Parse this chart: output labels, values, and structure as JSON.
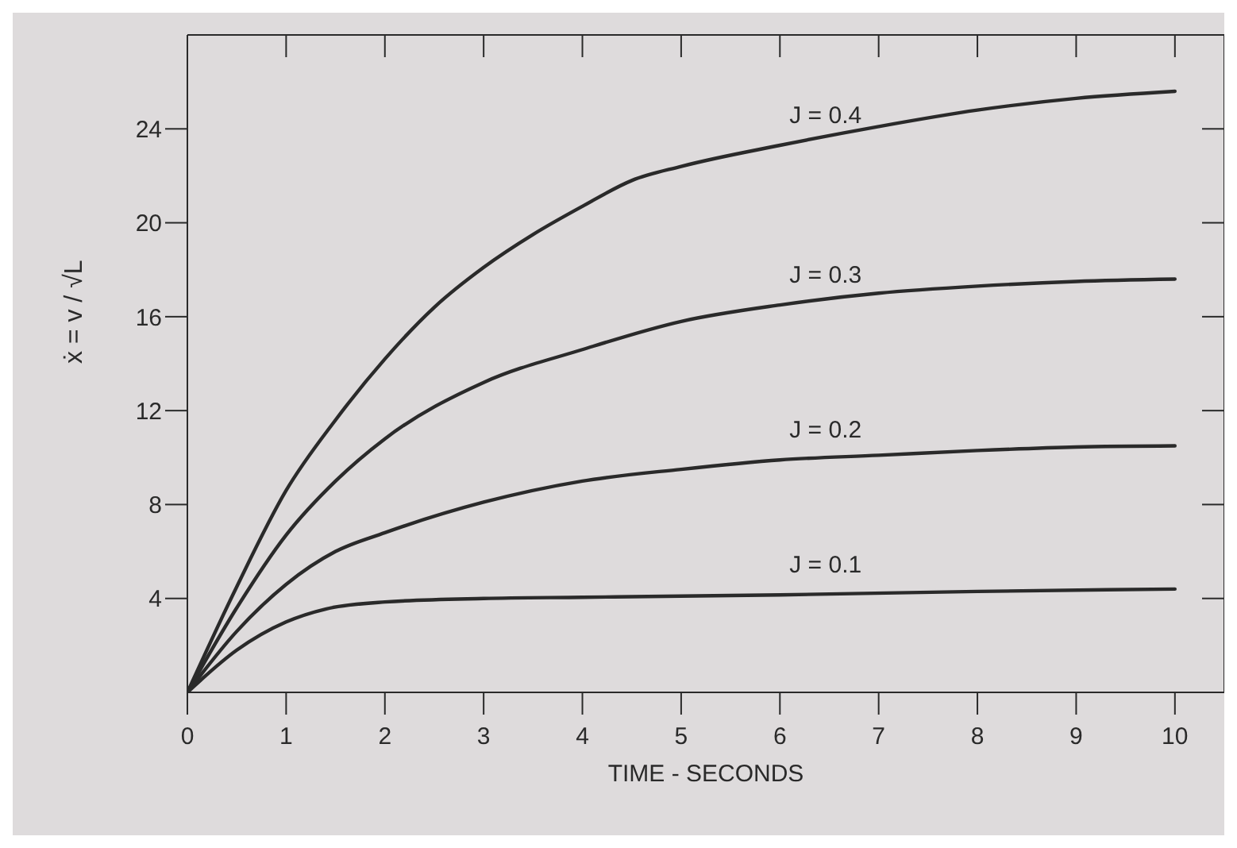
{
  "chart_data": {
    "type": "line",
    "xlabel": "TIME - SECONDS",
    "ylabel": "ẋ = v / √L",
    "xlim": [
      0,
      10.5
    ],
    "xticks": [
      0,
      1,
      2,
      3,
      4,
      5,
      6,
      7,
      8,
      9,
      10
    ],
    "ylim": [
      0,
      28
    ],
    "yticks": [
      4,
      8,
      12,
      16,
      20,
      24
    ],
    "legend": false,
    "marker": "none",
    "line_style": "solid",
    "series": [
      {
        "name": "J = 0.4",
        "color": "#2a2a2a",
        "x": [
          0,
          0.5,
          1,
          1.5,
          2,
          2.5,
          3,
          3.5,
          4,
          4.5,
          5,
          6,
          7,
          8,
          9,
          10
        ],
        "values": [
          0,
          4.5,
          8.6,
          11.6,
          14.2,
          16.4,
          18.1,
          19.5,
          20.7,
          21.8,
          22.4,
          23.3,
          24.1,
          24.8,
          25.3,
          25.6
        ]
      },
      {
        "name": "J = 0.3",
        "color": "#2a2a2a",
        "x": [
          0,
          0.5,
          1,
          1.5,
          2,
          3,
          4,
          5,
          6,
          7,
          8,
          9,
          10
        ],
        "values": [
          0,
          3.6,
          6.7,
          9.0,
          10.8,
          13.2,
          14.6,
          15.8,
          16.5,
          17.0,
          17.3,
          17.5,
          17.6
        ]
      },
      {
        "name": "J = 0.2",
        "color": "#2a2a2a",
        "x": [
          0,
          0.5,
          1,
          1.5,
          2,
          3,
          4,
          5,
          6,
          7,
          8,
          9,
          10
        ],
        "values": [
          0,
          2.6,
          4.6,
          6.0,
          6.8,
          8.1,
          9.0,
          9.5,
          9.9,
          10.1,
          10.3,
          10.45,
          10.5
        ]
      },
      {
        "name": "J = 0.1",
        "color": "#2a2a2a",
        "x": [
          0,
          0.5,
          1,
          1.4,
          2,
          3,
          4,
          6,
          8,
          10
        ],
        "values": [
          0,
          1.8,
          3.0,
          3.55,
          3.85,
          4.0,
          4.05,
          4.15,
          4.3,
          4.4
        ]
      }
    ]
  }
}
